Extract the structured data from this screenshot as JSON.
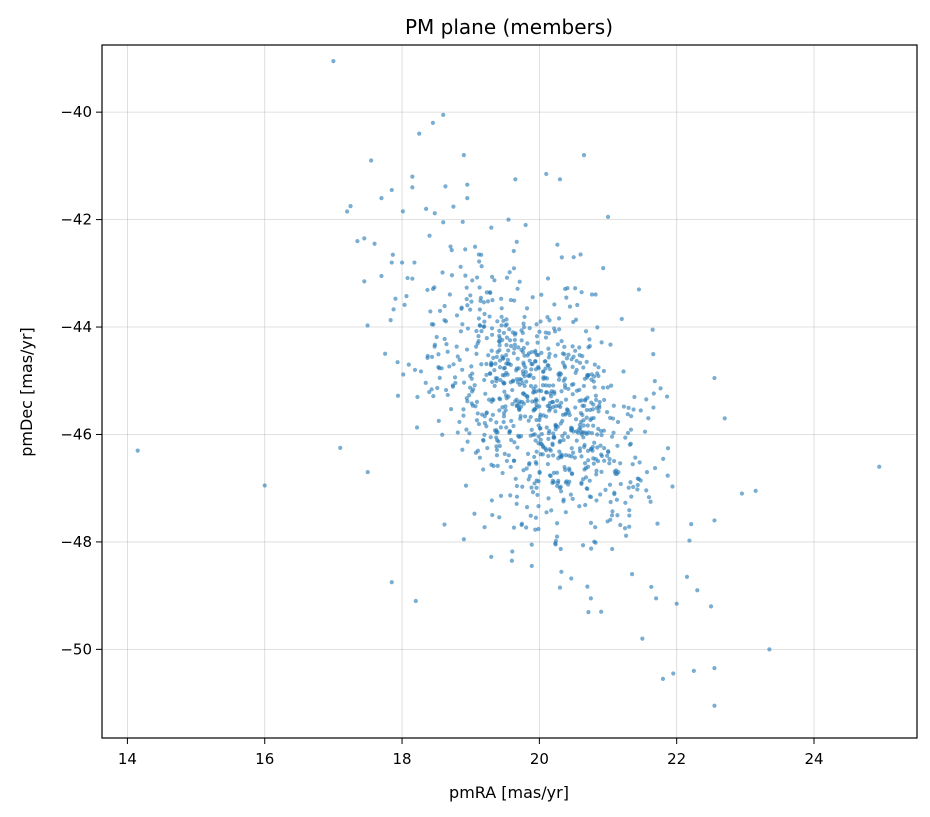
{
  "chart_data": {
    "type": "scatter",
    "title": "PM plane (members)",
    "xlabel": "pmRA [mas/yr]",
    "ylabel": "pmDec [mas/yr]",
    "xlim": [
      13.63,
      25.5
    ],
    "ylim": [
      -51.65,
      -38.75
    ],
    "grid": true,
    "marker_color": "#1f77b4",
    "marker_alpha": 0.6,
    "x_ticks": [
      14,
      16,
      18,
      20,
      22,
      24
    ],
    "y_ticks": [
      -40,
      -42,
      -44,
      -46,
      -48,
      -50
    ],
    "x_tick_labels": [
      "14",
      "16",
      "18",
      "20",
      "22",
      "24"
    ],
    "y_tick_labels": [
      "−40",
      "−42",
      "−44",
      "−46",
      "−48",
      "−50"
    ],
    "outliers": [
      [
        17.0,
        -39.05
      ],
      [
        18.6,
        -40.05
      ],
      [
        18.45,
        -40.2
      ],
      [
        18.25,
        -40.4
      ],
      [
        17.55,
        -40.9
      ],
      [
        18.9,
        -40.8
      ],
      [
        20.65,
        -40.8
      ],
      [
        20.1,
        -41.15
      ],
      [
        20.3,
        -41.25
      ],
      [
        19.65,
        -41.25
      ],
      [
        18.15,
        -41.2
      ],
      [
        17.25,
        -41.75
      ],
      [
        17.2,
        -41.85
      ],
      [
        21.0,
        -41.95
      ],
      [
        16.0,
        -46.95
      ],
      [
        14.15,
        -46.3
      ],
      [
        17.1,
        -46.25
      ],
      [
        17.5,
        -46.7
      ],
      [
        17.85,
        -48.75
      ],
      [
        18.2,
        -49.1
      ],
      [
        21.5,
        -49.8
      ],
      [
        21.95,
        -50.45
      ],
      [
        21.8,
        -50.55
      ],
      [
        22.55,
        -50.35
      ],
      [
        22.55,
        -51.05
      ],
      [
        22.25,
        -50.4
      ],
      [
        23.35,
        -50.0
      ],
      [
        24.95,
        -46.6
      ],
      [
        23.15,
        -47.05
      ],
      [
        22.95,
        -47.1
      ],
      [
        22.7,
        -45.7
      ],
      [
        22.55,
        -44.95
      ],
      [
        22.0,
        -49.15
      ],
      [
        22.5,
        -49.2
      ],
      [
        22.3,
        -48.9
      ],
      [
        22.15,
        -48.65
      ],
      [
        21.7,
        -49.05
      ],
      [
        22.55,
        -47.6
      ],
      [
        20.9,
        -49.3
      ],
      [
        20.75,
        -49.05
      ],
      [
        21.35,
        -48.6
      ],
      [
        20.3,
        -48.85
      ],
      [
        19.6,
        -48.35
      ],
      [
        18.9,
        -47.95
      ],
      [
        19.95,
        -47.55
      ],
      [
        20.6,
        -42.65
      ],
      [
        20.5,
        -42.7
      ],
      [
        19.55,
        -42.0
      ],
      [
        19.8,
        -42.1
      ],
      [
        21.45,
        -43.3
      ],
      [
        21.2,
        -43.85
      ],
      [
        21.65,
        -44.05
      ],
      [
        18.35,
        -41.8
      ],
      [
        18.6,
        -42.05
      ],
      [
        17.35,
        -42.4
      ],
      [
        17.45,
        -42.35
      ],
      [
        17.6,
        -42.45
      ],
      [
        17.45,
        -43.15
      ],
      [
        17.7,
        -43.05
      ],
      [
        17.85,
        -42.8
      ],
      [
        18.0,
        -42.8
      ],
      [
        18.15,
        -43.1
      ],
      [
        18.4,
        -42.3
      ],
      [
        17.7,
        -41.6
      ],
      [
        17.85,
        -41.45
      ],
      [
        18.15,
        -41.4
      ],
      [
        18.95,
        -41.35
      ],
      [
        18.95,
        -41.6
      ],
      [
        19.3,
        -42.15
      ]
    ],
    "cluster": {
      "n_points": 900,
      "center": [
        19.93,
        -45.4
      ],
      "sigma_ra": 0.78,
      "sigma_dec": 1.22,
      "correlation": -0.48,
      "seed": 20240611
    }
  }
}
